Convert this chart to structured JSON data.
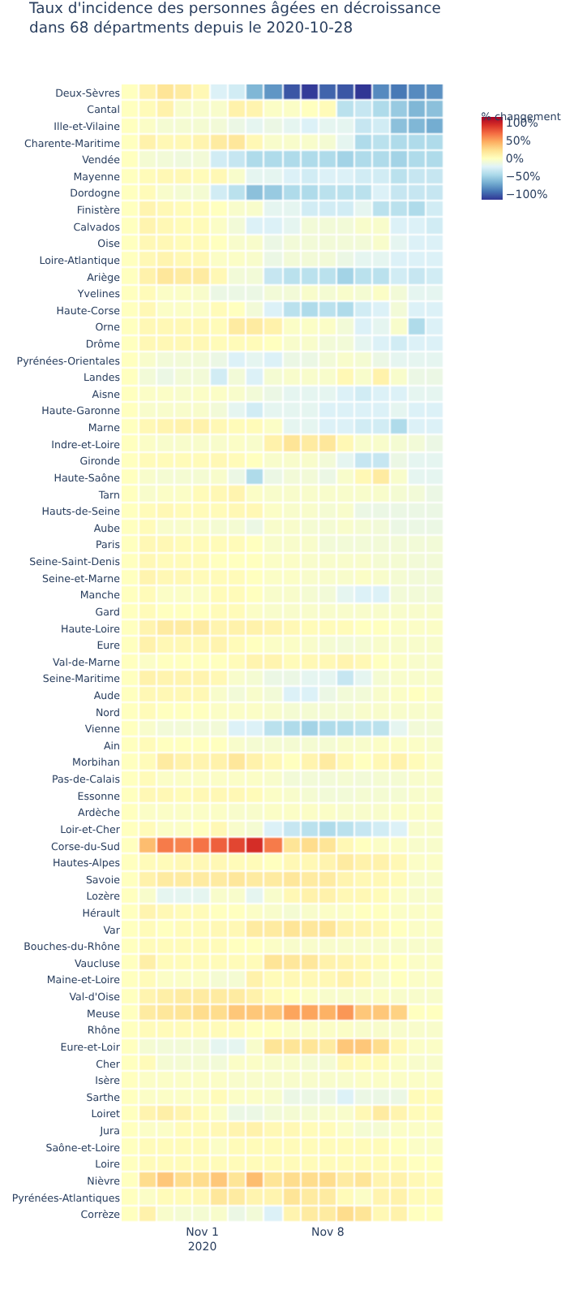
{
  "chart_data": {
    "type": "heatmap",
    "title": "Taux d'incidence des personnes âgées en décroissance\ndans 68 départments depuis le 2020-10-28",
    "clabel": "% changement",
    "x": [
      "2020-10-28",
      "2020-10-29",
      "2020-10-30",
      "2020-10-31",
      "2020-11-01",
      "2020-11-02",
      "2020-11-03",
      "2020-11-04",
      "2020-11-05",
      "2020-11-06",
      "2020-11-07",
      "2020-11-08",
      "2020-11-09",
      "2020-11-10",
      "2020-11-11",
      "2020-11-12",
      "2020-11-13",
      "2020-11-14"
    ],
    "xlim": [
      "2020-10-27T12:00",
      "2020-11-14T12:00"
    ],
    "xticks": [
      {
        "value": "2020-11-01",
        "label": "Nov 1\n2020"
      },
      {
        "value": "2020-11-08",
        "label": "Nov 8"
      }
    ],
    "y_categories": [
      "Deux-Sèvres",
      "Cantal",
      "Ille-et-Vilaine",
      "Charente-Maritime",
      "Vendée",
      "Mayenne",
      "Dordogne",
      "Finistère",
      "Calvados",
      "Oise",
      "Loire-Atlantique",
      "Ariège",
      "Yvelines",
      "Haute-Corse",
      "Orne",
      "Drôme",
      "Pyrénées-Orientales",
      "Landes",
      "Aisne",
      "Haute-Garonne",
      "Marne",
      "Indre-et-Loire",
      "Gironde",
      "Haute-Saône",
      "Tarn",
      "Hauts-de-Seine",
      "Aube",
      "Paris",
      "Seine-Saint-Denis",
      "Seine-et-Marne",
      "Manche",
      "Gard",
      "Haute-Loire",
      "Eure",
      "Val-de-Marne",
      "Seine-Maritime",
      "Aude",
      "Nord",
      "Vienne",
      "Ain",
      "Morbihan",
      "Pas-de-Calais",
      "Essonne",
      "Ardèche",
      "Loir-et-Cher",
      "Corse-du-Sud",
      "Hautes-Alpes",
      "Savoie",
      "Lozère",
      "Hérault",
      "Var",
      "Bouches-du-Rhône",
      "Vaucluse",
      "Maine-et-Loire",
      "Val-d'Oise",
      "Meuse",
      "Rhône",
      "Eure-et-Loir",
      "Cher",
      "Isère",
      "Sarthe",
      "Loiret",
      "Jura",
      "Saône-et-Loire",
      "Loire",
      "Nièvre",
      "Pyrénées-Atlantiques",
      "Corrèze"
    ],
    "clim": [
      -117,
      117
    ],
    "cticks": [
      {
        "value": -100,
        "label": "−100%"
      },
      {
        "value": -50,
        "label": "−50%"
      },
      {
        "value": 0,
        "label": "0%"
      },
      {
        "value": 50,
        "label": "50%"
      },
      {
        "value": 100,
        "label": "100%"
      }
    ],
    "cells": [
      [
        0,
        10,
        20,
        15,
        5,
        -25,
        -30,
        -65,
        -80,
        -105,
        -115,
        -100,
        -105,
        -117,
        -85,
        -92,
        -85,
        -82
      ],
      [
        0,
        3,
        10,
        -5,
        -5,
        -5,
        10,
        8,
        -3,
        -3,
        0,
        3,
        -40,
        -35,
        -45,
        -55,
        -65,
        -60
      ],
      [
        0,
        -3,
        -8,
        -8,
        -8,
        -10,
        -15,
        -20,
        -15,
        -20,
        -25,
        -20,
        -20,
        -35,
        -30,
        -60,
        -65,
        -70
      ],
      [
        0,
        10,
        5,
        5,
        8,
        15,
        18,
        5,
        -5,
        -5,
        -5,
        -8,
        -20,
        -45,
        -40,
        -45,
        -45,
        -45
      ],
      [
        0,
        -8,
        -10,
        -12,
        -10,
        -30,
        -35,
        -45,
        -45,
        -45,
        -45,
        -45,
        -50,
        -45,
        -45,
        -50,
        -45,
        -45
      ],
      [
        0,
        3,
        5,
        5,
        3,
        5,
        -5,
        -20,
        -20,
        -25,
        -30,
        -25,
        -25,
        -30,
        -30,
        -40,
        -35,
        -35
      ],
      [
        0,
        3,
        -5,
        -8,
        -8,
        -30,
        -40,
        -60,
        -55,
        -45,
        -45,
        -40,
        -40,
        -40,
        -25,
        -35,
        -35,
        -35
      ],
      [
        0,
        8,
        5,
        3,
        3,
        0,
        -5,
        -5,
        -20,
        -20,
        -30,
        -30,
        -30,
        -20,
        -40,
        -40,
        -45,
        -30
      ],
      [
        0,
        8,
        5,
        3,
        3,
        -3,
        -10,
        -25,
        -25,
        -20,
        -10,
        -10,
        -10,
        -5,
        -5,
        -25,
        -25,
        -30
      ],
      [
        0,
        5,
        5,
        3,
        3,
        0,
        -5,
        -5,
        -15,
        -10,
        -10,
        -10,
        -10,
        -10,
        -5,
        -20,
        -25,
        -25
      ],
      [
        0,
        5,
        8,
        5,
        5,
        -3,
        -3,
        -5,
        -15,
        -10,
        -10,
        -10,
        -15,
        -20,
        -20,
        -25,
        -25,
        -25
      ],
      [
        0,
        10,
        18,
        15,
        15,
        5,
        -10,
        -10,
        -35,
        -40,
        -40,
        -40,
        -50,
        -40,
        -40,
        -30,
        -35,
        -30
      ],
      [
        0,
        3,
        -3,
        -3,
        -5,
        -15,
        -15,
        -15,
        -10,
        -10,
        -5,
        -8,
        -5,
        -8,
        -3,
        -10,
        -20,
        -20
      ],
      [
        0,
        5,
        -3,
        -3,
        -3,
        3,
        0,
        -10,
        -25,
        -40,
        -45,
        -40,
        -45,
        -30,
        -25,
        -10,
        -25,
        -25
      ],
      [
        0,
        5,
        5,
        5,
        5,
        3,
        15,
        15,
        10,
        -3,
        -3,
        -3,
        -10,
        -25,
        -20,
        -5,
        -45,
        -25
      ],
      [
        0,
        5,
        5,
        5,
        5,
        3,
        3,
        3,
        0,
        -5,
        -5,
        -10,
        -10,
        -20,
        -25,
        -30,
        -25,
        -25
      ],
      [
        0,
        -5,
        -10,
        -10,
        -10,
        -15,
        -25,
        -20,
        -25,
        -15,
        -15,
        -10,
        -5,
        -8,
        -15,
        -20,
        -20,
        -20
      ],
      [
        0,
        -10,
        -15,
        -10,
        -10,
        -30,
        -10,
        -25,
        -8,
        -5,
        -5,
        -5,
        5,
        -5,
        10,
        -5,
        -15,
        -15
      ],
      [
        0,
        -3,
        -3,
        -5,
        -3,
        -3,
        -5,
        -10,
        -15,
        -20,
        -20,
        -20,
        -25,
        -30,
        -25,
        -25,
        -20,
        -20
      ],
      [
        0,
        -5,
        -5,
        -5,
        -5,
        -10,
        -20,
        -30,
        -20,
        -20,
        -20,
        -25,
        -25,
        -25,
        -25,
        -20,
        -25,
        -25
      ],
      [
        0,
        5,
        8,
        10,
        10,
        5,
        3,
        3,
        -3,
        -20,
        -20,
        -25,
        -25,
        -30,
        -30,
        -45,
        -25,
        -25
      ],
      [
        0,
        -3,
        -5,
        -5,
        -5,
        -5,
        -3,
        -5,
        10,
        20,
        15,
        18,
        5,
        -5,
        -5,
        -8,
        -10,
        -15
      ],
      [
        0,
        3,
        3,
        3,
        3,
        5,
        3,
        0,
        -5,
        -5,
        -5,
        -10,
        -20,
        -35,
        -35,
        -15,
        -20,
        -20
      ],
      [
        0,
        -5,
        -8,
        -8,
        -8,
        -5,
        -15,
        -45,
        -15,
        -10,
        -10,
        -15,
        -5,
        5,
        15,
        -5,
        -20,
        -20
      ],
      [
        0,
        -5,
        -3,
        -3,
        3,
        5,
        8,
        -3,
        -5,
        -5,
        -5,
        -5,
        -5,
        -5,
        -5,
        -8,
        -10,
        -15
      ],
      [
        0,
        3,
        5,
        3,
        3,
        3,
        5,
        5,
        -3,
        -5,
        -5,
        -8,
        -5,
        -15,
        -15,
        -15,
        -15,
        -15
      ],
      [
        0,
        3,
        -5,
        -5,
        -5,
        -8,
        -8,
        -15,
        -5,
        -5,
        -8,
        -8,
        -5,
        -8,
        -10,
        -15,
        -15,
        -15
      ],
      [
        0,
        5,
        5,
        3,
        3,
        3,
        3,
        0,
        -5,
        -5,
        -5,
        -10,
        -10,
        -10,
        -10,
        -10,
        -10,
        -10
      ],
      [
        0,
        5,
        3,
        3,
        3,
        0,
        0,
        0,
        -3,
        -3,
        -5,
        -5,
        -5,
        -5,
        -8,
        -8,
        -10,
        -10
      ],
      [
        0,
        8,
        5,
        5,
        3,
        3,
        3,
        0,
        -3,
        -3,
        -5,
        -5,
        -5,
        -3,
        -5,
        -8,
        -10,
        -10
      ],
      [
        0,
        3,
        -3,
        -3,
        -3,
        3,
        3,
        0,
        -5,
        -5,
        -8,
        -10,
        -20,
        -25,
        -25,
        -10,
        -10,
        -10
      ],
      [
        0,
        3,
        0,
        0,
        0,
        3,
        3,
        -3,
        -5,
        -5,
        -5,
        -5,
        -5,
        -5,
        -5,
        -5,
        -5,
        -5
      ],
      [
        0,
        8,
        15,
        15,
        15,
        8,
        10,
        10,
        8,
        5,
        3,
        3,
        3,
        0,
        0,
        -3,
        -3,
        -3
      ],
      [
        0,
        10,
        5,
        5,
        5,
        8,
        3,
        0,
        -3,
        -3,
        -5,
        -8,
        -10,
        -8,
        -5,
        -5,
        -5,
        -5
      ],
      [
        0,
        -3,
        0,
        0,
        0,
        0,
        3,
        8,
        8,
        3,
        5,
        5,
        8,
        5,
        0,
        -3,
        -5,
        -5
      ],
      [
        0,
        10,
        8,
        8,
        8,
        5,
        -5,
        -8,
        -15,
        -15,
        -20,
        -20,
        -35,
        -20,
        -8,
        -5,
        -5,
        -5
      ],
      [
        0,
        5,
        5,
        5,
        5,
        -5,
        -10,
        -5,
        -10,
        -25,
        -25,
        -15,
        -10,
        -10,
        -5,
        -3,
        0,
        -3
      ],
      [
        0,
        3,
        0,
        0,
        0,
        -3,
        -3,
        -3,
        -5,
        -8,
        -8,
        -8,
        -8,
        -5,
        -5,
        -5,
        -5,
        -5
      ],
      [
        0,
        -5,
        -10,
        -10,
        -10,
        -10,
        -25,
        -25,
        -40,
        -45,
        -50,
        -45,
        -45,
        -40,
        -40,
        -20,
        -10,
        -10
      ],
      [
        0,
        3,
        0,
        0,
        0,
        0,
        -5,
        -8,
        -8,
        -8,
        -8,
        -8,
        -5,
        -5,
        -3,
        -3,
        -3,
        -5
      ],
      [
        0,
        3,
        15,
        10,
        8,
        10,
        18,
        10,
        5,
        0,
        8,
        15,
        5,
        0,
        5,
        10,
        3,
        -3
      ],
      [
        0,
        3,
        -3,
        -3,
        -3,
        -3,
        -3,
        -3,
        -5,
        -10,
        -10,
        -10,
        -8,
        -10,
        -8,
        -8,
        -5,
        -5
      ],
      [
        0,
        5,
        5,
        3,
        5,
        5,
        5,
        3,
        -3,
        -5,
        -8,
        -10,
        -10,
        -8,
        -8,
        -8,
        -5,
        -5
      ],
      [
        0,
        -3,
        -3,
        -3,
        -3,
        -3,
        -5,
        -5,
        -3,
        -3,
        -3,
        -3,
        -5,
        -5,
        -5,
        -3,
        -3,
        -3
      ],
      [
        0,
        3,
        -3,
        -3,
        0,
        5,
        -5,
        -8,
        -25,
        -35,
        -40,
        -45,
        -40,
        -35,
        -30,
        -25,
        -5,
        -5
      ],
      [
        0,
        40,
        65,
        62,
        68,
        75,
        85,
        95,
        65,
        20,
        25,
        20,
        5,
        0,
        -3,
        -3,
        -5,
        -5
      ],
      [
        0,
        3,
        3,
        5,
        5,
        5,
        3,
        3,
        0,
        5,
        5,
        8,
        15,
        10,
        10,
        5,
        -3,
        -3
      ],
      [
        0,
        10,
        15,
        15,
        15,
        15,
        18,
        15,
        15,
        18,
        15,
        15,
        8,
        5,
        5,
        3,
        -5,
        -5
      ],
      [
        0,
        -5,
        -20,
        -20,
        -20,
        -5,
        -5,
        -20,
        -5,
        5,
        10,
        10,
        5,
        5,
        3,
        -3,
        -5,
        -5
      ],
      [
        0,
        8,
        5,
        3,
        3,
        0,
        0,
        -3,
        -5,
        -8,
        -5,
        -3,
        -3,
        0,
        0,
        -3,
        -3,
        -3
      ],
      [
        0,
        3,
        0,
        3,
        3,
        5,
        5,
        15,
        15,
        20,
        18,
        20,
        10,
        8,
        5,
        0,
        -3,
        -3
      ],
      [
        0,
        3,
        3,
        3,
        3,
        3,
        0,
        0,
        -3,
        -5,
        -5,
        -5,
        -5,
        -5,
        -5,
        -5,
        -5,
        -5
      ],
      [
        0,
        12,
        3,
        3,
        3,
        3,
        3,
        3,
        20,
        18,
        18,
        10,
        8,
        5,
        3,
        0,
        -3,
        -3
      ],
      [
        0,
        3,
        -3,
        -3,
        -3,
        -8,
        -8,
        10,
        3,
        5,
        5,
        5,
        10,
        5,
        -5,
        0,
        -3,
        -3
      ],
      [
        0,
        8,
        12,
        15,
        15,
        15,
        15,
        10,
        3,
        0,
        -3,
        -5,
        -5,
        -5,
        -3,
        -5,
        -5,
        -5
      ],
      [
        0,
        15,
        18,
        20,
        25,
        25,
        35,
        35,
        35,
        50,
        50,
        45,
        55,
        35,
        35,
        30,
        0,
        0
      ],
      [
        0,
        3,
        3,
        3,
        3,
        3,
        3,
        0,
        0,
        -3,
        -3,
        -3,
        -3,
        -5,
        -5,
        -5,
        -5,
        -5
      ],
      [
        0,
        -8,
        -10,
        -10,
        -10,
        -20,
        -20,
        -5,
        20,
        20,
        20,
        15,
        35,
        35,
        25,
        5,
        -3,
        -3
      ],
      [
        0,
        3,
        -8,
        -8,
        -8,
        -10,
        -3,
        -3,
        -5,
        -5,
        -8,
        -8,
        5,
        3,
        3,
        -3,
        -5,
        -5
      ],
      [
        0,
        -3,
        -3,
        -3,
        -3,
        -3,
        -5,
        -5,
        -5,
        -5,
        -5,
        -5,
        -5,
        -3,
        -3,
        -3,
        -3,
        -3
      ],
      [
        0,
        -3,
        -3,
        -3,
        -3,
        3,
        -3,
        -3,
        -5,
        -15,
        -15,
        -15,
        -25,
        -15,
        -15,
        -15,
        3,
        3
      ],
      [
        0,
        8,
        12,
        8,
        3,
        -3,
        -15,
        -15,
        -10,
        -8,
        -8,
        -5,
        -5,
        5,
        15,
        8,
        3,
        3
      ],
      [
        0,
        -3,
        -3,
        3,
        3,
        5,
        8,
        10,
        5,
        5,
        3,
        3,
        -3,
        -8,
        -8,
        -3,
        -3,
        -3
      ],
      [
        0,
        3,
        3,
        3,
        3,
        -3,
        3,
        3,
        3,
        3,
        3,
        3,
        3,
        3,
        3,
        0,
        -3,
        -3
      ],
      [
        0,
        3,
        3,
        3,
        3,
        3,
        3,
        3,
        3,
        3,
        3,
        3,
        3,
        3,
        3,
        3,
        0,
        0
      ],
      [
        0,
        25,
        35,
        25,
        25,
        35,
        20,
        40,
        20,
        25,
        25,
        25,
        15,
        20,
        8,
        10,
        5,
        3
      ],
      [
        0,
        -3,
        3,
        3,
        5,
        18,
        15,
        8,
        8,
        20,
        15,
        15,
        3,
        -3,
        8,
        10,
        3,
        3
      ],
      [
        0,
        10,
        -5,
        -8,
        -8,
        -5,
        -15,
        -10,
        -25,
        8,
        15,
        15,
        25,
        20,
        5,
        10,
        0,
        0
      ]
    ]
  }
}
